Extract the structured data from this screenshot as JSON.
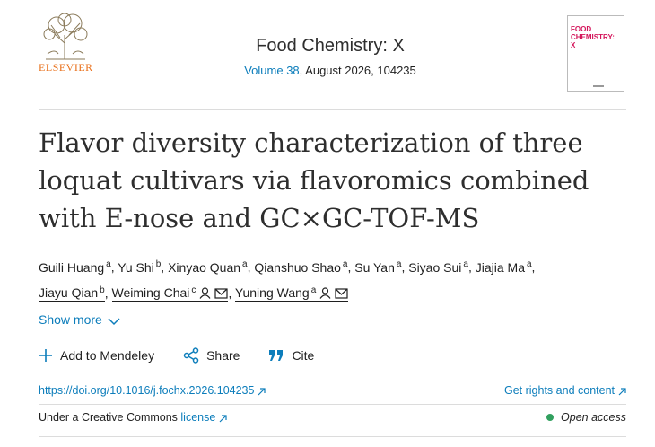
{
  "header": {
    "publisher": "ELSEVIER",
    "journal": "Food Chemistry: X",
    "volume_link": "Volume 38",
    "issue_info": ", August 2026, 104235",
    "cover_title": "FOOD CHEMISTRY: X"
  },
  "article": {
    "title": "Flavor diversity characterization of three loquat cultivars via flavoromics combined with E-nose and GC×GC-TOF-MS",
    "author_separator": ",",
    "authors": [
      {
        "name": "Guili Huang",
        "affil": "a"
      },
      {
        "name": "Yu Shi",
        "affil": "b"
      },
      {
        "name": "Xinyao Quan",
        "affil": "a"
      },
      {
        "name": "Qianshuo Shao",
        "affil": "a"
      },
      {
        "name": "Su Yan",
        "affil": "a"
      },
      {
        "name": "Siyao Sui",
        "affil": "a"
      },
      {
        "name": "Jiajia Ma",
        "affil": "a"
      },
      {
        "name": "Jiayu Qian",
        "affil": "b"
      },
      {
        "name": "Weiming Chai",
        "affil": "c",
        "contact": true
      },
      {
        "name": "Yuning Wang",
        "affil": "a",
        "contact": true
      }
    ],
    "show_more": "Show more"
  },
  "actions": [
    "Add to Mendeley",
    "Share",
    "Cite"
  ],
  "links": {
    "doi": "https://doi.org/10.1016/j.fochx.2026.104235",
    "rights": "Get rights and content"
  },
  "license": {
    "prefix": "Under a Creative Commons",
    "link": "license",
    "access": "Open access"
  }
}
